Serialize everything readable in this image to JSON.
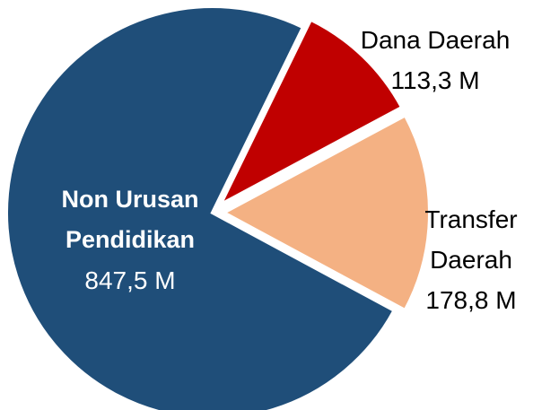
{
  "chart_data": {
    "type": "pie",
    "categories": [
      "Non Urusan Pendidikan",
      "Dana Daerah",
      "Transfer Daerah"
    ],
    "values": [
      847.5,
      113.3,
      178.8
    ],
    "value_labels": [
      "847,5  M",
      "113,3 M",
      "178,8 M"
    ],
    "colors": [
      "#1f4e79",
      "#c00000",
      "#f4b183"
    ]
  }
}
